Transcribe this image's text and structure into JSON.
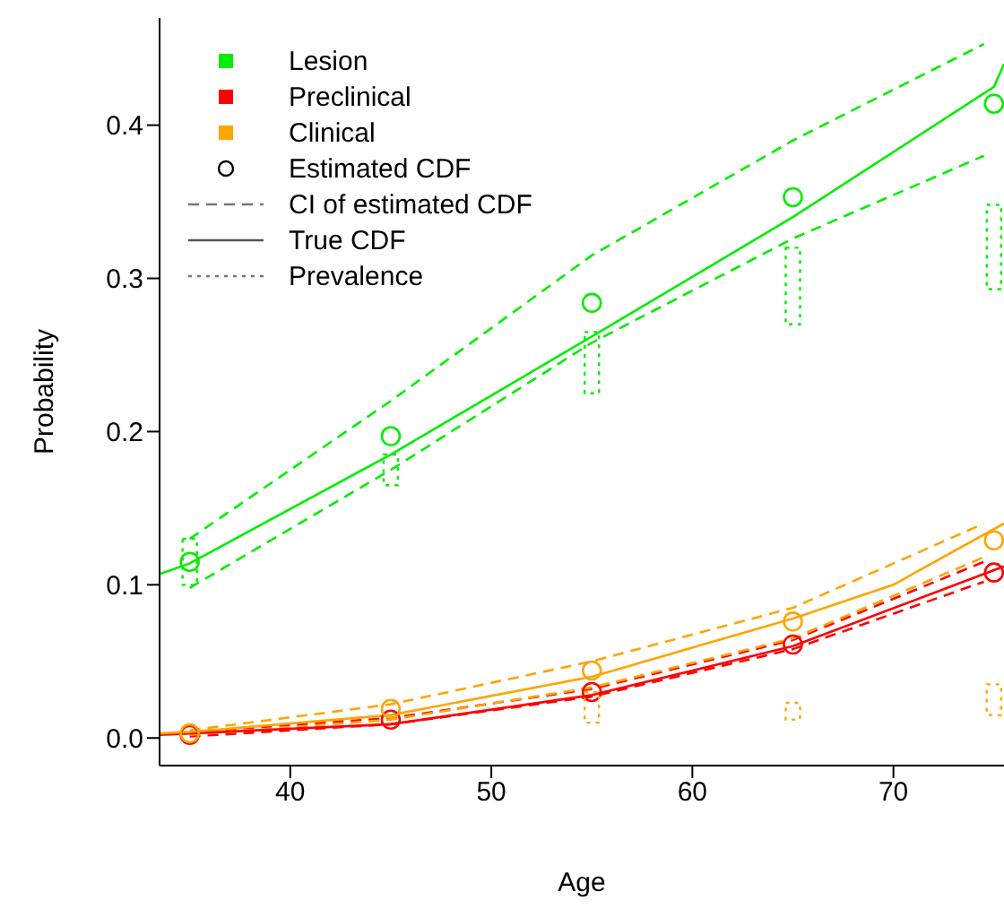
{
  "chart_data": {
    "type": "line",
    "xlabel": "Age",
    "ylabel": "Probability",
    "xlim": [
      33.5,
      75.5
    ],
    "ylim": [
      -0.018,
      0.47
    ],
    "xticks": [
      40,
      50,
      60,
      70
    ],
    "yticks": [
      {
        "value": 0,
        "label": "0.0"
      },
      {
        "value": 0.1,
        "label": "0.1"
      },
      {
        "value": 0.2,
        "label": "0.2"
      },
      {
        "value": 0.3,
        "label": "0.3"
      },
      {
        "value": 0.4,
        "label": "0.4"
      }
    ],
    "grid": false,
    "legend": "top left",
    "annotations": [
      "Estimated CDF",
      "CI of estimated CDF",
      "True CDF",
      "Prevalence"
    ],
    "series": [
      {
        "name": "Lesion",
        "type": "scatter",
        "marker": "circle",
        "color": "#00ee00",
        "x": [
          35,
          45,
          55,
          65,
          75
        ],
        "values": [
          0.115,
          0.197,
          0.284,
          0.353,
          0.414
        ]
      },
      {
        "name": "Preclinical",
        "type": "scatter",
        "marker": "circle",
        "color": "#ff0000",
        "x": [
          35,
          45,
          55,
          65,
          75
        ],
        "values": [
          0.002,
          0.012,
          0.03,
          0.061,
          0.108
        ]
      },
      {
        "name": "Clinical",
        "type": "scatter",
        "marker": "circle",
        "color": "#ffa500",
        "x": [
          35,
          45,
          55,
          65,
          75
        ],
        "values": [
          0.003,
          0.019,
          0.044,
          0.076,
          0.129
        ]
      },
      {
        "line_style": "dashed",
        "color": "#00ee00",
        "x": [
          35,
          45,
          55,
          65,
          74.5
        ],
        "values": [
          0.13,
          0.22,
          0.315,
          0.39,
          0.453
        ]
      },
      {
        "line_style": "dashed",
        "color": "#00ee00",
        "x": [
          35,
          45,
          55,
          65,
          74.5
        ],
        "values": [
          0.098,
          0.175,
          0.258,
          0.326,
          0.38
        ]
      },
      {
        "line_style": "dashed",
        "color": "#ff0000",
        "x": [
          35,
          45,
          55,
          65,
          74.5
        ],
        "values": [
          0.004,
          0.013,
          0.032,
          0.064,
          0.115
        ]
      },
      {
        "line_style": "dashed",
        "color": "#ff0000",
        "x": [
          35,
          45,
          55,
          65,
          74.5
        ],
        "values": [
          0.001,
          0.009,
          0.027,
          0.058,
          0.102
        ]
      },
      {
        "line_style": "dashed",
        "color": "#ffa500",
        "x": [
          35,
          45,
          55,
          65,
          74.5
        ],
        "values": [
          0.005,
          0.022,
          0.05,
          0.085,
          0.14
        ]
      },
      {
        "line_style": "dashed",
        "color": "#ffa500",
        "x": [
          35,
          45,
          55,
          65,
          74.5
        ],
        "values": [
          0.002,
          0.012,
          0.033,
          0.065,
          0.118
        ]
      },
      {
        "line_style": "solid",
        "color": "#00ee00",
        "x": [
          33.5,
          35,
          45,
          55,
          65,
          75,
          75.5
        ],
        "values": [
          0.107,
          0.114,
          0.185,
          0.262,
          0.34,
          0.425,
          0.44
        ]
      },
      {
        "line_style": "solid",
        "color": "#ff0000",
        "x": [
          33.5,
          35,
          45,
          55,
          65,
          75.5
        ],
        "values": [
          0.002,
          0.003,
          0.009,
          0.028,
          0.06,
          0.112
        ]
      },
      {
        "line_style": "solid",
        "color": "#ffa500",
        "x": [
          33.5,
          35,
          45,
          55,
          65,
          70,
          75.5
        ],
        "values": [
          0.003,
          0.004,
          0.015,
          0.04,
          0.078,
          0.1,
          0.14
        ]
      },
      {
        "type": "bar",
        "line_style": "dotted",
        "color": "#00ee00",
        "x": [
          35,
          45,
          55,
          65,
          75
        ],
        "base": [
          0.1,
          0.165,
          0.225,
          0.27,
          0.293
        ],
        "values": [
          0.03,
          0.02,
          0.04,
          0.05,
          0.055
        ]
      },
      {
        "type": "bar",
        "line_style": "dotted",
        "color": "#ffa500",
        "x": [
          55,
          65,
          75
        ],
        "base": [
          0.01,
          0.012,
          0.015
        ],
        "values": [
          0.02,
          0.011,
          0.02
        ]
      }
    ]
  }
}
